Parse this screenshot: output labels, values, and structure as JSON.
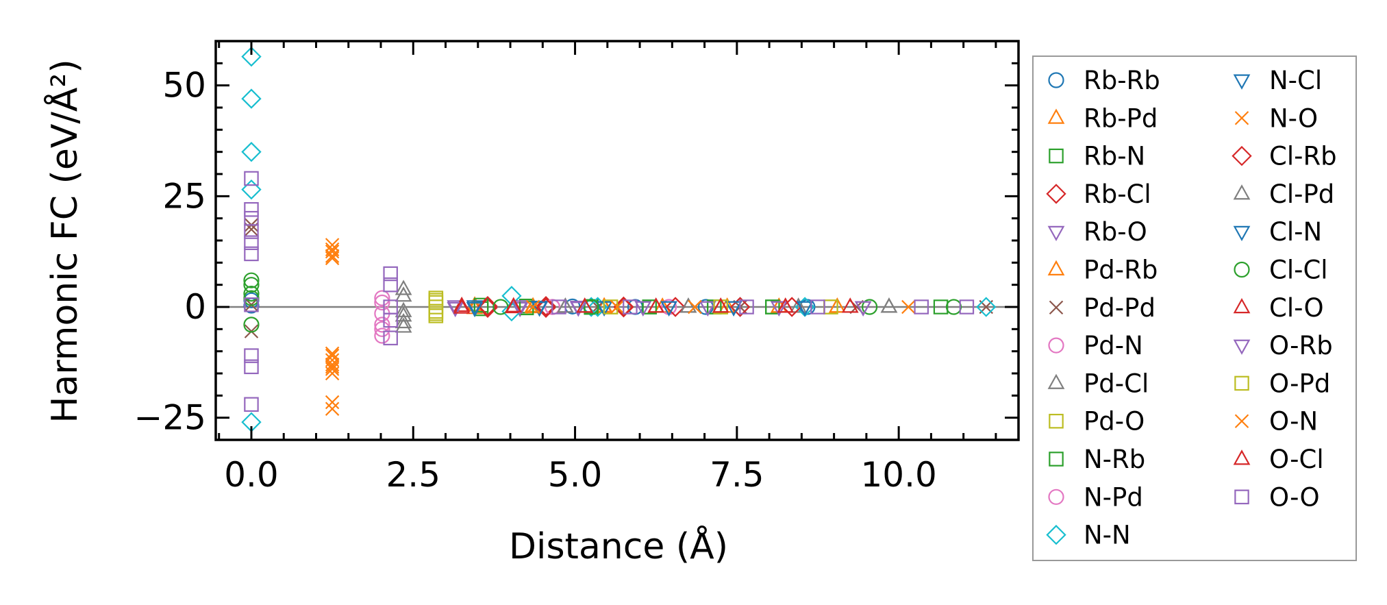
{
  "chart_data": {
    "type": "scatter",
    "xlabel": "Distance (Å)",
    "ylabel": "Harmonic FC (eV/Å²)",
    "xlim": [
      -0.55,
      11.85
    ],
    "ylim": [
      -30,
      60
    ],
    "xticks": [
      0.0,
      2.5,
      5.0,
      7.5,
      10.0
    ],
    "xtick_labels": [
      "0.0",
      "2.5",
      "5.0",
      "7.5",
      "10.0"
    ],
    "yticks": [
      -25,
      0,
      25,
      50
    ],
    "ytick_labels": [
      "−25",
      "0",
      "25",
      "50"
    ],
    "zero_line": true,
    "grid": false,
    "legend": {
      "placement": "outside-right",
      "columns": 2
    },
    "series": [
      {
        "name": "Rb-Rb",
        "marker": "circle",
        "color": "#1f77b4",
        "x": [
          0,
          0,
          4.96,
          5.93,
          7.02,
          8.59
        ],
        "y": [
          1.5,
          0.3,
          0.1,
          0.0,
          0.0,
          0.0
        ]
      },
      {
        "name": "Rb-Pd",
        "marker": "triangle-up",
        "color": "#ff7f0e",
        "x": [
          3.45,
          4.35,
          5.45,
          6.35,
          7.35,
          8.15,
          9.05
        ],
        "y": [
          0.3,
          0.1,
          0.1,
          0.0,
          0.0,
          0.0,
          0.0
        ]
      },
      {
        "name": "Rb-N",
        "marker": "square",
        "color": "#2ca02c",
        "x": [
          3.55,
          4.25,
          5.25,
          6.15,
          7.15,
          8.05
        ],
        "y": [
          -0.4,
          0.2,
          0.1,
          0.0,
          0.0,
          0.0
        ]
      },
      {
        "name": "Rb-Cl",
        "marker": "diamond",
        "color": "#d62728",
        "x": [
          3.65,
          4.55,
          5.75,
          6.55,
          7.55,
          8.35
        ],
        "y": [
          -0.2,
          0.2,
          0.1,
          0.0,
          0.0,
          0.0
        ]
      },
      {
        "name": "Rb-O",
        "marker": "triangle-down",
        "color": "#9467bd",
        "x": [
          3.15,
          4.15,
          5.05,
          6.05,
          7.05,
          8.15,
          9.45
        ],
        "y": [
          0.2,
          -0.2,
          0.1,
          0.0,
          0.0,
          0.0,
          0.0
        ]
      },
      {
        "name": "Pd-Rb",
        "marker": "triangle-up",
        "color": "#ff7f0e",
        "x": [
          3.45,
          4.35,
          5.45,
          6.35,
          7.35,
          8.15,
          9.05
        ],
        "y": [
          -0.3,
          -0.1,
          -0.1,
          0.0,
          0.0,
          0.0,
          0.0
        ]
      },
      {
        "name": "Pd-Pd",
        "marker": "x",
        "color": "#8c564b",
        "x": [
          0,
          0,
          0,
          0,
          5.35,
          7.55,
          9.35,
          11.35
        ],
        "y": [
          18.5,
          17.5,
          -5.5,
          0.5,
          0.0,
          0.0,
          0.0,
          0.0
        ]
      },
      {
        "name": "Pd-N",
        "marker": "circle",
        "color": "#e377c2",
        "x": [
          2.02,
          2.02,
          2.02,
          2.02,
          4.65,
          6.45
        ],
        "y": [
          2.0,
          -1.5,
          -5.0,
          -6.5,
          0.0,
          0.0
        ]
      },
      {
        "name": "Pd-Cl",
        "marker": "triangle-up",
        "color": "#7f7f7f",
        "x": [
          2.35,
          2.35,
          2.35,
          2.35,
          4.85,
          6.75,
          8.45,
          9.85
        ],
        "y": [
          4.0,
          -1.0,
          -3.5,
          -4.5,
          0.0,
          0.0,
          0.0,
          0.0
        ]
      },
      {
        "name": "Pd-O",
        "marker": "square",
        "color": "#bcbd22",
        "x": [
          2.85,
          2.85,
          2.85,
          2.85,
          2.85,
          5.55,
          7.25,
          8.95
        ],
        "y": [
          2.0,
          1.0,
          0.0,
          -1.0,
          -2.0,
          0.0,
          0.0,
          0.0
        ]
      },
      {
        "name": "N-Rb",
        "marker": "square",
        "color": "#2ca02c",
        "x": [
          3.55,
          4.25,
          5.25,
          6.15,
          7.15,
          8.05,
          10.65
        ],
        "y": [
          0.4,
          -0.2,
          -0.1,
          0.0,
          0.0,
          0.0,
          0.0
        ]
      },
      {
        "name": "N-Pd",
        "marker": "circle",
        "color": "#e377c2",
        "x": [
          2.02,
          2.02,
          4.65,
          6.45
        ],
        "y": [
          1.0,
          -4.0,
          0.0,
          0.0
        ]
      },
      {
        "name": "N-N",
        "marker": "diamond",
        "color": "#17becf",
        "x": [
          0,
          0,
          0,
          0,
          0,
          4.02,
          4.02,
          5.25,
          5.35,
          7.55,
          8.55,
          11.35
        ],
        "y": [
          56.5,
          47.0,
          35.0,
          26.5,
          -26.0,
          2.5,
          -1.0,
          0.0,
          0.0,
          0.0,
          0.0,
          0.0
        ]
      },
      {
        "name": "N-Cl",
        "marker": "triangle-down",
        "color": "#1f77b4",
        "x": [
          3.45,
          4.45,
          5.45,
          6.45,
          7.45,
          8.55
        ],
        "y": [
          0.2,
          0.1,
          0.0,
          0.0,
          0.0,
          0.0
        ]
      },
      {
        "name": "N-O",
        "marker": "x",
        "color": "#ff7f0e",
        "x": [
          1.25,
          1.25,
          1.25,
          1.25,
          1.25,
          1.25,
          1.25,
          1.25,
          1.25,
          1.25,
          4.35,
          5.65,
          6.85,
          10.15
        ],
        "y": [
          14.0,
          12.5,
          11.0,
          -10.5,
          -12.0,
          -13.0,
          -14.0,
          -15.0,
          -21.5,
          -23.0,
          0.0,
          0.0,
          0.0,
          0.0
        ]
      },
      {
        "name": "Cl-Rb",
        "marker": "diamond",
        "color": "#d62728",
        "x": [
          3.65,
          4.55,
          5.75,
          6.55,
          7.55,
          8.35
        ],
        "y": [
          0.2,
          -0.2,
          -0.1,
          0.0,
          0.0,
          0.0
        ]
      },
      {
        "name": "Cl-Pd",
        "marker": "triangle-up",
        "color": "#7f7f7f",
        "x": [
          2.35,
          2.35,
          4.85,
          6.75,
          9.85
        ],
        "y": [
          2.5,
          -2.0,
          0.0,
          0.0,
          0.0
        ]
      },
      {
        "name": "Cl-N",
        "marker": "triangle-down",
        "color": "#1f77b4",
        "x": [
          3.45,
          4.45,
          5.45,
          6.45,
          7.45,
          8.55
        ],
        "y": [
          -0.2,
          -0.1,
          0.0,
          0.0,
          0.0,
          0.0
        ]
      },
      {
        "name": "Cl-Cl",
        "marker": "circle",
        "color": "#2ca02c",
        "x": [
          0,
          0,
          0,
          0,
          0,
          3.85,
          5.25,
          9.55,
          10.85
        ],
        "y": [
          6.0,
          5.0,
          3.0,
          2.0,
          -4.0,
          0.0,
          0.0,
          0.0,
          0.0
        ]
      },
      {
        "name": "Cl-O",
        "marker": "triangle-up",
        "color": "#d62728",
        "x": [
          3.25,
          4.05,
          5.15,
          6.25,
          7.25,
          8.25,
          9.25
        ],
        "y": [
          0.2,
          -0.1,
          0.0,
          0.0,
          0.0,
          0.0,
          0.0
        ]
      },
      {
        "name": "O-Rb",
        "marker": "triangle-down",
        "color": "#9467bd",
        "x": [
          3.15,
          4.15,
          5.05,
          6.05,
          7.05,
          8.15,
          9.45
        ],
        "y": [
          -0.2,
          0.2,
          -0.1,
          0.0,
          0.0,
          0.0,
          0.0
        ]
      },
      {
        "name": "O-Pd",
        "marker": "square",
        "color": "#bcbd22",
        "x": [
          2.85,
          2.85,
          5.55,
          7.25,
          8.95
        ],
        "y": [
          1.5,
          -1.5,
          0.0,
          0.0,
          0.0
        ]
      },
      {
        "name": "O-N",
        "marker": "x",
        "color": "#ff7f0e",
        "x": [
          1.25,
          1.25,
          1.25,
          1.25,
          4.35,
          5.65,
          6.85
        ],
        "y": [
          13.0,
          11.5,
          -11.0,
          -13.5,
          0.0,
          0.0,
          0.0
        ]
      },
      {
        "name": "O-Cl",
        "marker": "triangle-up",
        "color": "#d62728",
        "x": [
          3.25,
          4.05,
          5.15,
          6.25,
          7.25,
          8.25
        ],
        "y": [
          -0.2,
          0.1,
          0.0,
          0.0,
          0.0,
          0.0
        ]
      },
      {
        "name": "O-O",
        "marker": "square",
        "color": "#9467bd",
        "x": [
          0,
          0,
          0,
          0,
          0,
          0,
          0,
          0,
          0,
          0,
          2.15,
          2.15,
          2.15,
          2.15,
          2.15,
          4.75,
          5.85,
          7.65,
          8.75,
          10.35,
          11.05
        ],
        "y": [
          29.0,
          22.0,
          20.0,
          17.0,
          14.5,
          12.0,
          -11.0,
          -13.5,
          -22.0,
          0.5,
          7.5,
          5.0,
          0.0,
          -3.0,
          -7.0,
          0.0,
          0.0,
          0.0,
          0.0,
          0.0,
          0.0
        ]
      }
    ]
  }
}
